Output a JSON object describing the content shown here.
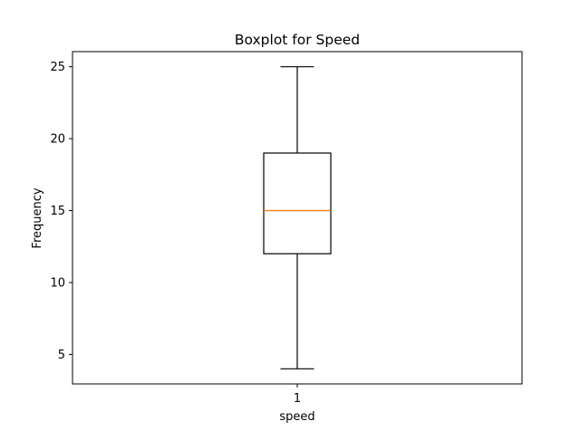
{
  "chart_data": {
    "type": "boxplot",
    "title": "Boxplot for Speed",
    "xlabel": "speed",
    "ylabel": "Frequency",
    "categories": [
      "1"
    ],
    "boxes": [
      {
        "category": "1",
        "whisker_low": 4,
        "q1": 12,
        "median": 15,
        "q3": 19,
        "whisker_high": 25
      }
    ],
    "ylim": [
      2.95,
      26.05
    ],
    "yticks": [
      5,
      10,
      15,
      20,
      25
    ],
    "grid": false,
    "colors": {
      "box": "#000000",
      "median": "#ff7f0e",
      "whisker": "#000000"
    }
  }
}
